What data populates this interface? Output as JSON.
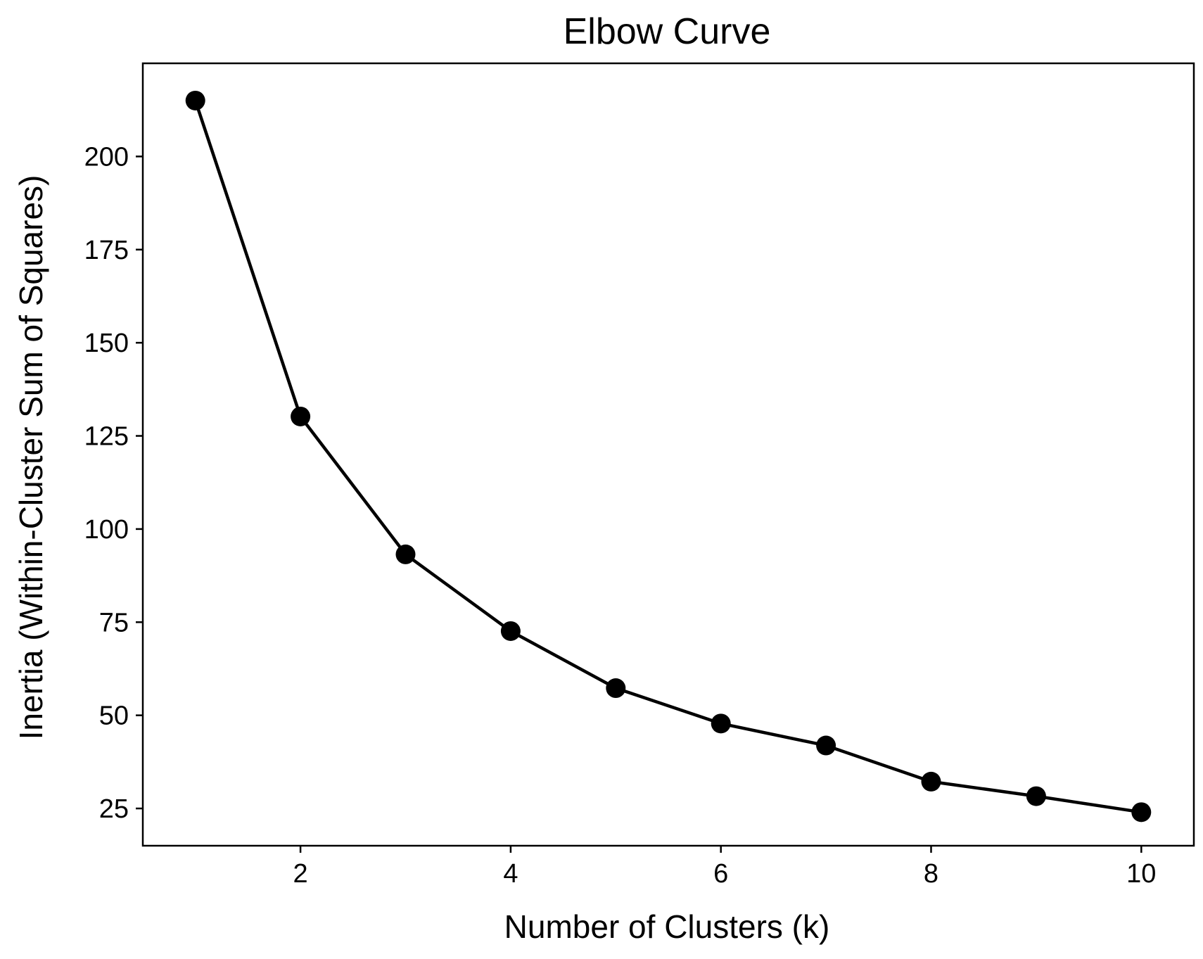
{
  "chart_data": {
    "type": "line",
    "title": "Elbow Curve",
    "xlabel": "Number of Clusters (k)",
    "ylabel": "Inertia (Within-Cluster Sum of Squares)",
    "xlim": [
      0.5,
      10.5
    ],
    "ylim": [
      15,
      225
    ],
    "xticks": [
      2,
      4,
      6,
      8,
      10
    ],
    "yticks": [
      25,
      50,
      75,
      100,
      125,
      150,
      175,
      200
    ],
    "grid": false,
    "legend": "none",
    "series": [
      {
        "color": "#000000",
        "marker": "circle",
        "x": [
          1,
          2,
          3,
          4,
          5,
          6,
          7,
          8,
          9,
          10
        ],
        "y": [
          215,
          130.2,
          93.2,
          72.6,
          57.3,
          47.8,
          41.9,
          32.2,
          28.3,
          24
        ]
      }
    ]
  }
}
